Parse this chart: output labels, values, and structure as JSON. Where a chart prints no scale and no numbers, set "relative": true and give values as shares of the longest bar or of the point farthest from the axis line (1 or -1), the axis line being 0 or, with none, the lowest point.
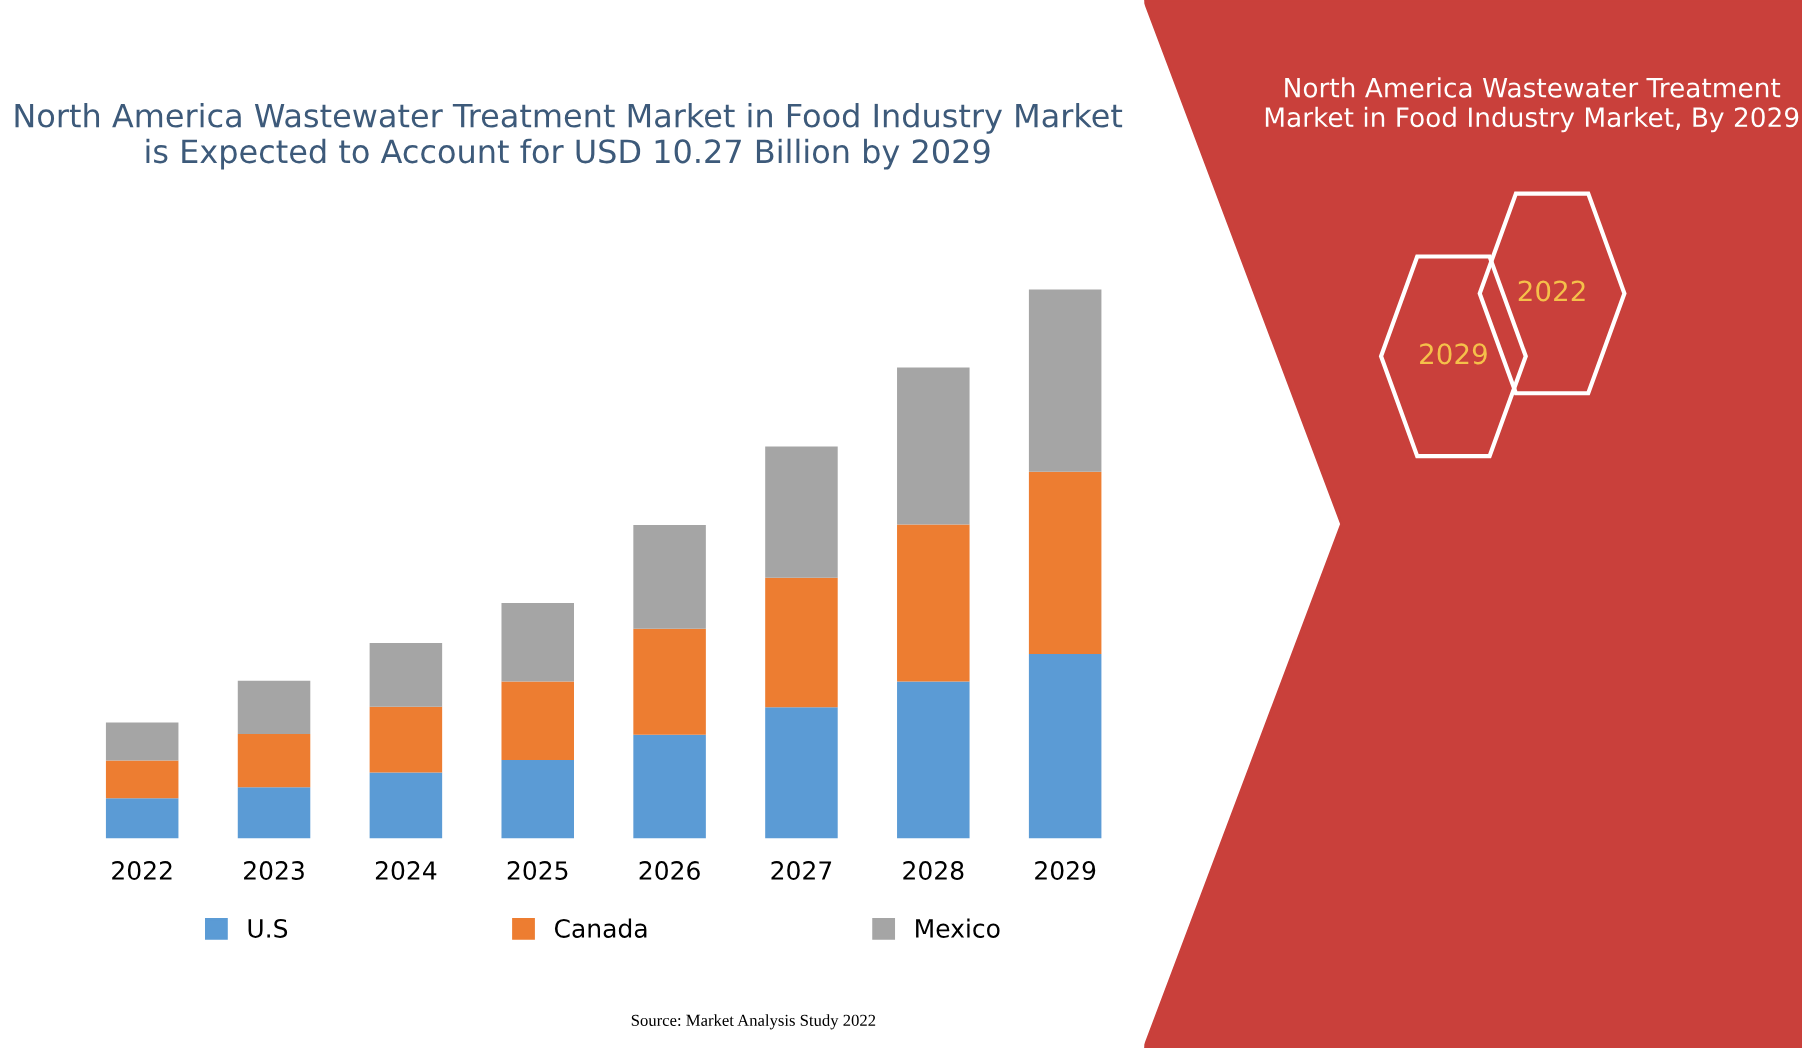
{
  "chart_data": [
    {
      "type": "bar",
      "stacked": true,
      "relative": true,
      "title": "North America Wastewater Treatment Market in Food Industry Market is Expected to Account for USD 10.27 Billion by 2029",
      "categories": [
        "2022",
        "2023",
        "2024",
        "2025",
        "2026",
        "2027",
        "2028",
        "2029"
      ],
      "series": [
        {
          "name": "U.S",
          "color": "#5b9bd5",
          "values": [
            0.073,
            0.093,
            0.12,
            0.143,
            0.189,
            0.239,
            0.286,
            0.336
          ]
        },
        {
          "name": "Canada",
          "color": "#ed7d31",
          "values": [
            0.069,
            0.097,
            0.12,
            0.143,
            0.193,
            0.236,
            0.286,
            0.332
          ]
        },
        {
          "name": "Mexico",
          "color": "#a5a5a5",
          "values": [
            0.069,
            0.097,
            0.116,
            0.143,
            0.189,
            0.239,
            0.286,
            0.332
          ]
        }
      ],
      "legend": "bottom",
      "grid": false,
      "annotations": [
        "Source: Market Analysis Study 2022"
      ]
    },
    {
      "type": "other",
      "title": "North America Wastewater Treatment Market in Food Industry Market, By 2029",
      "annotations": [
        "2022",
        "2029"
      ]
    }
  ]
}
